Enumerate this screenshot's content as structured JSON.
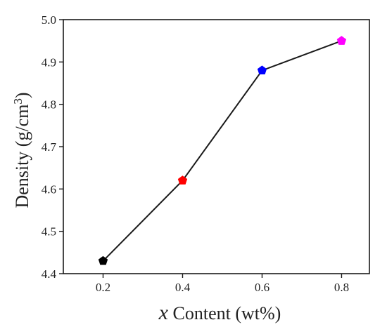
{
  "chart_data": {
    "type": "line",
    "title": "",
    "xlabel": {
      "symbol": "x",
      "text": " Content (wt%)"
    },
    "ylabel": {
      "text": "Density (g/cm",
      "superscript": "3",
      "close": ")"
    },
    "x": [
      0.2,
      0.4,
      0.6,
      0.8
    ],
    "series": [
      {
        "values": [
          4.43,
          4.62,
          4.88,
          4.95
        ],
        "line_color": "#1a1a1a",
        "marker": "pentagon",
        "marker_colors": [
          "#000000",
          "#ff0000",
          "#0000ff",
          "#ff00ff"
        ]
      }
    ],
    "xlim": [
      0.1,
      0.87
    ],
    "ylim": [
      4.4,
      5.0
    ],
    "xticks": [
      0.2,
      0.4,
      0.6,
      0.8
    ],
    "xtick_labels": [
      "0.2",
      "0.4",
      "0.6",
      "0.8"
    ],
    "yticks": [
      4.4,
      4.5,
      4.6,
      4.7,
      4.8,
      4.9,
      5.0
    ],
    "ytick_labels": [
      "4.4",
      "4.5",
      "4.6",
      "4.7",
      "4.8",
      "4.9",
      "5.0"
    ],
    "grid": false,
    "legend": "none"
  }
}
